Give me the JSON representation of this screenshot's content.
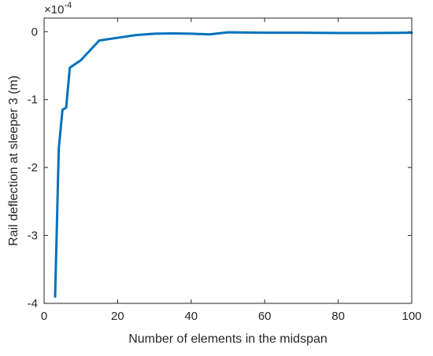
{
  "chart_data": {
    "type": "line",
    "xlabel": "Number of elements in the midspan",
    "ylabel": "Rail deflection at sleeper 3 (m)",
    "exponent_label": "×10",
    "exponent_power": "-4",
    "xlim": [
      0,
      100
    ],
    "ylim": [
      -4,
      0.2
    ],
    "xticks": [
      0,
      20,
      40,
      60,
      80,
      100
    ],
    "yticks": [
      -4,
      -3,
      -2,
      -1,
      0
    ],
    "xtick_labels": [
      "0",
      "20",
      "40",
      "60",
      "80",
      "100"
    ],
    "ytick_labels": [
      "-4",
      "-3",
      "-2",
      "-1",
      "0"
    ],
    "grid": false,
    "series": [
      {
        "color": "#0072BD",
        "x": [
          3,
          4,
          5,
          6,
          7,
          10,
          15,
          20,
          25,
          30,
          35,
          40,
          45,
          50,
          60,
          70,
          80,
          90,
          100
        ],
        "y": [
          -3.9,
          -1.72,
          -1.15,
          -1.12,
          -0.53,
          -0.42,
          -0.13,
          -0.09,
          -0.05,
          -0.03,
          -0.025,
          -0.03,
          -0.04,
          -0.01,
          -0.015,
          -0.015,
          -0.02,
          -0.02,
          -0.015
        ]
      }
    ]
  }
}
